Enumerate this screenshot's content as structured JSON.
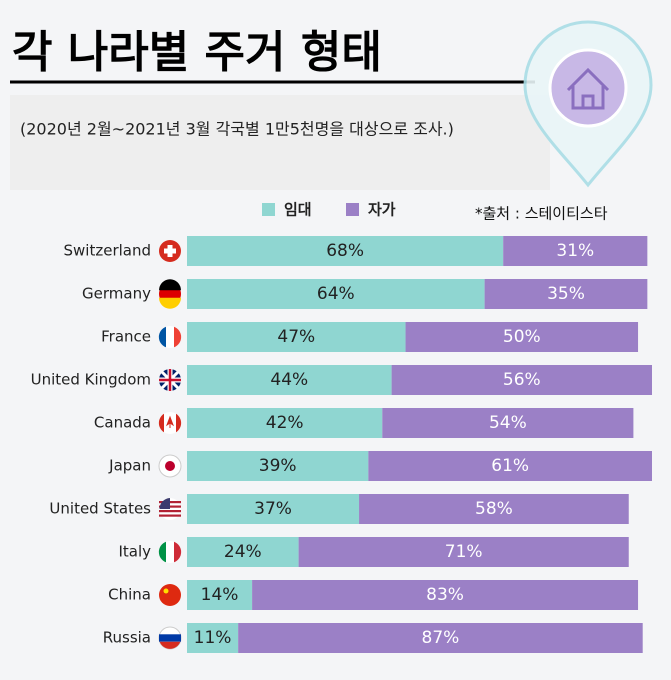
{
  "chart_data": {
    "type": "stacked-bar",
    "title": "각 나라별 주거 형태",
    "subtitle": "(2020년 2월~2021년 3월 각국별 1만5천명을 대상으로 조사.)",
    "source": "*출처 : 스테이티스타",
    "categories": [
      "Switzerland",
      "Germany",
      "France",
      "United Kingdom",
      "Canada",
      "Japan",
      "United States",
      "Italy",
      "China",
      "Russia"
    ],
    "series": [
      {
        "name": "임대",
        "color": "#8fd6d1",
        "label_color": "#222222",
        "values": [
          68,
          64,
          47,
          44,
          42,
          39,
          37,
          24,
          14,
          11
        ],
        "value_labels": [
          "68%",
          "64%",
          "47%",
          "44%",
          "42%",
          "39%",
          "37%",
          "24%",
          "14%",
          "11%"
        ]
      },
      {
        "name": "자가",
        "color": "#9b80c6",
        "label_color": "#ffffff",
        "values": [
          31,
          35,
          50,
          56,
          54,
          61,
          58,
          71,
          83,
          87
        ],
        "value_labels": [
          "31%",
          "35%",
          "50%",
          "56%",
          "54%",
          "61%",
          "58%",
          "71%",
          "83%",
          "87%"
        ]
      }
    ]
  }
}
